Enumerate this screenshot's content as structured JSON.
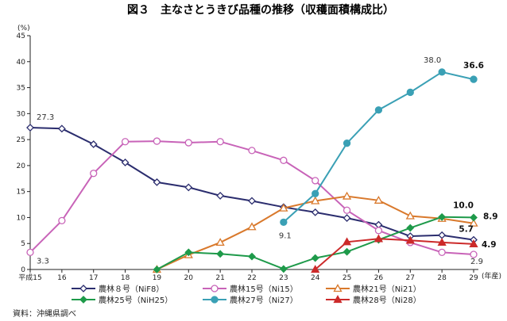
{
  "chart_data": {
    "type": "line",
    "title": "図３　主なさとうきび品種の推移（収穫面積構成比）",
    "ylabel": "(%)",
    "xlabel": "(年産)",
    "ylim": [
      0,
      45
    ],
    "yticks": [
      0,
      5,
      10,
      15,
      20,
      25,
      30,
      35,
      40,
      45
    ],
    "categories": [
      "平成15",
      "16",
      "17",
      "18",
      "19",
      "20",
      "21",
      "22",
      "23",
      "24",
      "25",
      "26",
      "27",
      "28",
      "29"
    ],
    "legend_placement": "bottom",
    "grid": false,
    "series": [
      {
        "name": "農林８号（NiF8）",
        "color": "#2b2d6e",
        "marker": "diamond-open",
        "values": [
          27.3,
          27.1,
          24.1,
          20.6,
          16.8,
          15.8,
          14.2,
          13.2,
          12.0,
          11.0,
          9.9,
          8.6,
          6.4,
          6.6,
          5.7
        ]
      },
      {
        "name": "農林15号（Ni15）",
        "color": "#c863b8",
        "marker": "circle-open",
        "values": [
          3.3,
          9.4,
          18.5,
          24.6,
          24.7,
          24.4,
          24.6,
          22.9,
          21.0,
          17.1,
          11.4,
          7.5,
          5.2,
          3.3,
          2.9
        ]
      },
      {
        "name": "農林21号（Ni21）",
        "color": "#d9792c",
        "marker": "triangle-open",
        "values": [
          null,
          null,
          null,
          null,
          0,
          2.8,
          5.2,
          8.2,
          11.8,
          13.2,
          14.1,
          13.3,
          10.3,
          9.8,
          8.9
        ]
      },
      {
        "name": "農林25号（NiH25）",
        "color": "#1e9a4a",
        "marker": "diamond-filled",
        "values": [
          null,
          null,
          null,
          null,
          0,
          3.3,
          3.0,
          2.5,
          0.1,
          2.2,
          3.4,
          5.7,
          8.0,
          10.1,
          10.0
        ]
      },
      {
        "name": "農林27号（Ni27）",
        "color": "#3aa0b5",
        "marker": "circle-filled",
        "values": [
          null,
          null,
          null,
          null,
          null,
          null,
          null,
          null,
          9.1,
          14.6,
          24.3,
          30.7,
          34.1,
          38.0,
          36.6
        ]
      },
      {
        "name": "農林28号（Ni28）",
        "color": "#cc2a2a",
        "marker": "triangle-filled",
        "values": [
          null,
          null,
          null,
          null,
          null,
          null,
          null,
          null,
          null,
          0,
          5.3,
          5.9,
          5.6,
          5.2,
          4.9
        ]
      }
    ],
    "annotations": [
      {
        "series": 0,
        "index": 0,
        "text": "27.3",
        "bold": false
      },
      {
        "series": 1,
        "index": 0,
        "text": "3.3",
        "bold": false
      },
      {
        "series": 4,
        "index": 8,
        "text": "9.1",
        "bold": false
      },
      {
        "series": 4,
        "index": 13,
        "text": "38.0",
        "bold": false
      },
      {
        "series": 4,
        "index": 14,
        "text": "36.6",
        "bold": true
      },
      {
        "series": 3,
        "index": 14,
        "text": "10.0",
        "bold": true
      },
      {
        "series": 2,
        "index": 14,
        "text": "8.9",
        "bold": true
      },
      {
        "series": 0,
        "index": 14,
        "text": "5.7",
        "bold": true
      },
      {
        "series": 5,
        "index": 14,
        "text": "4.9",
        "bold": true
      },
      {
        "series": 1,
        "index": 14,
        "text": "2.9",
        "bold": false
      }
    ]
  },
  "source": "資料：沖縄県調べ"
}
